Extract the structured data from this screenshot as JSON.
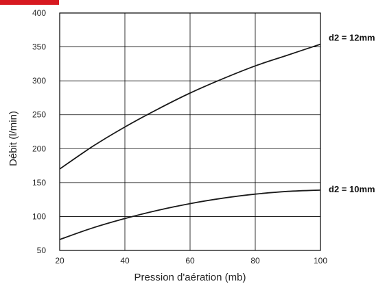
{
  "chart_data": {
    "type": "line",
    "title": "",
    "xlabel": "Pression d'aération (mb)",
    "ylabel": "Débit (l/min)",
    "xlim": [
      20,
      100
    ],
    "ylim": [
      50,
      400
    ],
    "xticks": [
      20,
      40,
      60,
      80,
      100
    ],
    "yticks": [
      50,
      100,
      150,
      200,
      250,
      300,
      350,
      400
    ],
    "grid": true,
    "legend": "none",
    "series": [
      {
        "name": "d2 = 12mm",
        "x": [
          20,
          30,
          40,
          50,
          60,
          70,
          80,
          90,
          100
        ],
        "y": [
          170,
          203,
          232,
          258,
          282,
          303,
          322,
          338,
          354
        ]
      },
      {
        "name": "d2 = 10mm",
        "x": [
          20,
          30,
          40,
          50,
          60,
          70,
          80,
          90,
          100
        ],
        "y": [
          66,
          83,
          97,
          109,
          119,
          127,
          133,
          137,
          139
        ]
      }
    ]
  },
  "colors": {
    "accent": "#d71920",
    "line": "#1a1a1a",
    "grid": "#000000"
  }
}
